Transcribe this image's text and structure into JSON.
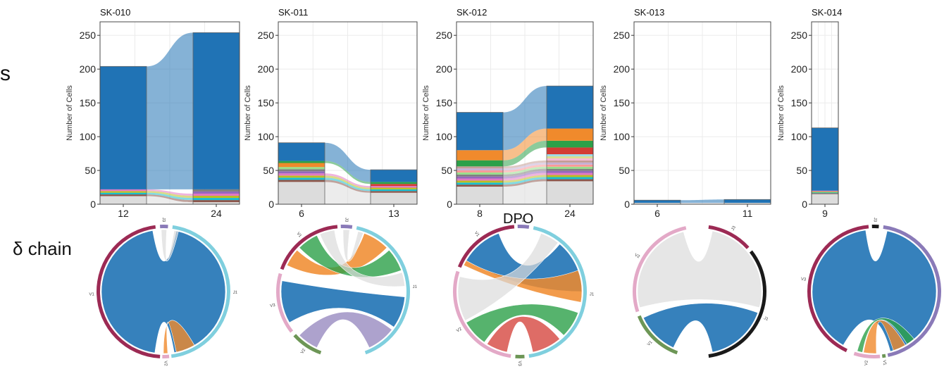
{
  "row_labels": {
    "top": "s",
    "bottom": "δ chain",
    "middle": "DPO"
  },
  "colors": {
    "blue": "#2073b5",
    "orange": "#f08a2c",
    "green": "#2ca048",
    "red": "#d33b33",
    "grey": "#dcdcdc",
    "purple": "#8a7ab8",
    "maroon": "#9c2a54",
    "pink": "#e3a9c7",
    "cyan": "#7fcfde",
    "olive": "#6d9656",
    "black": "#1a1a1a",
    "panel_bg": "#ffffff",
    "grid": "#ebebeb",
    "border": "#4a4a4a"
  },
  "chart_data": [
    {
      "type": "alluvial",
      "title": "SK-010",
      "ylabel": "Number of Cells",
      "categories": [
        "12",
        "24"
      ],
      "ylim": [
        0,
        270
      ],
      "yticks": [
        0,
        50,
        100,
        150,
        200,
        250
      ],
      "stacks": [
        [
          {
            "color": "grey",
            "value": 12
          },
          {
            "color": "misc",
            "value": 10
          },
          {
            "color": "blue",
            "value": 182
          }
        ],
        [
          {
            "color": "grey",
            "value": 3
          },
          {
            "color": "misc",
            "value": 19
          },
          {
            "color": "blue",
            "value": 232
          }
        ]
      ]
    },
    {
      "type": "alluvial",
      "title": "SK-011",
      "ylabel": "Number of Cells",
      "categories": [
        "6",
        "13"
      ],
      "ylim": [
        0,
        270
      ],
      "yticks": [
        0,
        50,
        100,
        150,
        200,
        250
      ],
      "stacks": [
        [
          {
            "color": "grey",
            "value": 33
          },
          {
            "color": "misc",
            "value": 22
          },
          {
            "color": "orange",
            "value": 6
          },
          {
            "color": "green",
            "value": 3
          },
          {
            "color": "blue",
            "value": 27
          }
        ],
        [
          {
            "color": "grey",
            "value": 17
          },
          {
            "color": "misc",
            "value": 10
          },
          {
            "color": "red",
            "value": 3
          },
          {
            "color": "green",
            "value": 3
          },
          {
            "color": "blue",
            "value": 18
          }
        ]
      ]
    },
    {
      "type": "alluvial",
      "title": "SK-012",
      "ylabel": "Number of Cells",
      "categories": [
        "8",
        "24"
      ],
      "ylim": [
        0,
        270
      ],
      "yticks": [
        0,
        50,
        100,
        150,
        200,
        250
      ],
      "stacks": [
        [
          {
            "color": "grey",
            "value": 26
          },
          {
            "color": "misc",
            "value": 30
          },
          {
            "color": "green",
            "value": 9
          },
          {
            "color": "orange",
            "value": 15
          },
          {
            "color": "blue",
            "value": 56
          }
        ],
        [
          {
            "color": "grey",
            "value": 34
          },
          {
            "color": "misc",
            "value": 40
          },
          {
            "color": "red",
            "value": 10
          },
          {
            "color": "green",
            "value": 10
          },
          {
            "color": "orange",
            "value": 18
          },
          {
            "color": "blue",
            "value": 63
          }
        ]
      ]
    },
    {
      "type": "alluvial",
      "title": "SK-013",
      "ylabel": "Number of Cells",
      "categories": [
        "6",
        "11"
      ],
      "ylim": [
        0,
        270
      ],
      "yticks": [
        0,
        50,
        100,
        150,
        200,
        250
      ],
      "stacks": [
        [
          {
            "color": "grey",
            "value": 2
          },
          {
            "color": "blue",
            "value": 4
          }
        ],
        [
          {
            "color": "grey",
            "value": 2
          },
          {
            "color": "blue",
            "value": 5
          }
        ]
      ]
    },
    {
      "type": "alluvial",
      "title": "SK-014",
      "ylabel": "Number of Cells",
      "categories": [
        "9"
      ],
      "ylim": [
        0,
        270
      ],
      "yticks": [
        0,
        50,
        100,
        150,
        200,
        250
      ],
      "stacks": [
        [
          {
            "color": "grey",
            "value": 15
          },
          {
            "color": "misc",
            "value": 5
          },
          {
            "color": "blue",
            "value": 93
          }
        ]
      ]
    }
  ],
  "chord_data": [
    {
      "segments": [
        {
          "label": "V1",
          "color": "maroon",
          "start": 183,
          "end": 353
        },
        {
          "label": "J3",
          "color": "purple",
          "start": 357,
          "end": 364
        },
        {
          "label": "J1",
          "color": "cyan",
          "start": 8,
          "end": 173
        },
        {
          "label": "V2",
          "color": "pink",
          "start": 175,
          "end": 181
        }
      ],
      "ribbons": [
        {
          "a1": 188,
          "a2": 350,
          "b1": 12,
          "b2": 170,
          "color": "blue",
          "alpha": 0.9
        },
        {
          "a1": 176,
          "a2": 180,
          "b1": 150,
          "b2": 168,
          "color": "orange",
          "alpha": 0.8
        },
        {
          "a1": 358,
          "a2": 363,
          "b1": 10,
          "b2": 14,
          "color": "grey",
          "alpha": 0.7
        }
      ]
    },
    {
      "segments": [
        {
          "label": "V1",
          "color": "maroon",
          "start": 290,
          "end": 355
        },
        {
          "label": "J3",
          "color": "purple",
          "start": 358,
          "end": 368
        },
        {
          "label": "J1",
          "color": "cyan",
          "start": 12,
          "end": 160
        },
        {
          "label": "V2",
          "color": "olive",
          "start": 200,
          "end": 228
        },
        {
          "label": "V3",
          "color": "pink",
          "start": 232,
          "end": 286
        }
      ],
      "ribbons": [
        {
          "a1": 295,
          "a2": 312,
          "b1": 20,
          "b2": 45,
          "color": "orange",
          "alpha": 0.85
        },
        {
          "a1": 315,
          "a2": 335,
          "b1": 48,
          "b2": 70,
          "color": "green",
          "alpha": 0.8
        },
        {
          "a1": 338,
          "a2": 352,
          "b1": 72,
          "b2": 85,
          "color": "grey",
          "alpha": 0.7
        },
        {
          "a1": 240,
          "a2": 280,
          "b1": 95,
          "b2": 125,
          "color": "blue",
          "alpha": 0.9
        },
        {
          "a1": 205,
          "a2": 225,
          "b1": 128,
          "b2": 155,
          "color": "purple",
          "alpha": 0.7
        },
        {
          "a1": 360,
          "a2": 366,
          "b1": 14,
          "b2": 19,
          "color": "grey",
          "alpha": 0.7
        }
      ]
    },
    {
      "segments": [
        {
          "label": "V1",
          "color": "maroon",
          "start": 292,
          "end": 355
        },
        {
          "label": "J3",
          "color": "purple",
          "start": 358,
          "end": 368
        },
        {
          "label": "J1",
          "color": "cyan",
          "start": 12,
          "end": 172
        },
        {
          "label": "V3",
          "color": "olive",
          "start": 176,
          "end": 184
        },
        {
          "label": "V2",
          "color": "pink",
          "start": 188,
          "end": 288
        }
      ],
      "ribbons": [
        {
          "a1": 300,
          "a2": 340,
          "b1": 40,
          "b2": 90,
          "color": "blue",
          "alpha": 0.9
        },
        {
          "a1": 295,
          "a2": 300,
          "b1": 70,
          "b2": 100,
          "color": "orange",
          "alpha": 0.85
        },
        {
          "a1": 215,
          "a2": 240,
          "b1": 110,
          "b2": 135,
          "color": "green",
          "alpha": 0.8
        },
        {
          "a1": 192,
          "a2": 212,
          "b1": 140,
          "b2": 168,
          "color": "red",
          "alpha": 0.75
        },
        {
          "a1": 242,
          "a2": 284,
          "b1": 20,
          "b2": 38,
          "color": "grey",
          "alpha": 0.7
        }
      ]
    },
    {
      "segments": [
        {
          "label": "V1",
          "color": "olive",
          "start": 200,
          "end": 248
        },
        {
          "label": "V2",
          "color": "pink",
          "start": 252,
          "end": 348
        },
        {
          "label": "J3",
          "color": "maroon",
          "start": 8,
          "end": 48
        },
        {
          "label": "J1",
          "color": "black",
          "start": 52,
          "end": 172
        }
      ],
      "ribbons": [
        {
          "a1": 205,
          "a2": 245,
          "b1": 110,
          "b2": 168,
          "color": "blue",
          "alpha": 0.9
        },
        {
          "a1": 255,
          "a2": 345,
          "b1": 12,
          "b2": 105,
          "color": "grey",
          "alpha": 0.7
        }
      ]
    },
    {
      "segments": [
        {
          "label": "V3",
          "color": "maroon",
          "start": 205,
          "end": 355
        },
        {
          "label": "J3",
          "color": "black",
          "start": 358,
          "end": 364
        },
        {
          "label": "J1",
          "color": "purple",
          "start": 8,
          "end": 168
        },
        {
          "label": "V2",
          "color": "pink",
          "start": 175,
          "end": 198
        },
        {
          "label": "V1",
          "color": "olive",
          "start": 170,
          "end": 173
        }
      ],
      "ribbons": [
        {
          "a1": 210,
          "a2": 352,
          "b1": 12,
          "b2": 165,
          "color": "blue",
          "alpha": 0.9
        },
        {
          "a1": 178,
          "a2": 190,
          "b1": 150,
          "b2": 162,
          "color": "orange",
          "alpha": 0.8
        },
        {
          "a1": 191,
          "a2": 196,
          "b1": 140,
          "b2": 148,
          "color": "green",
          "alpha": 0.8
        }
      ]
    }
  ]
}
